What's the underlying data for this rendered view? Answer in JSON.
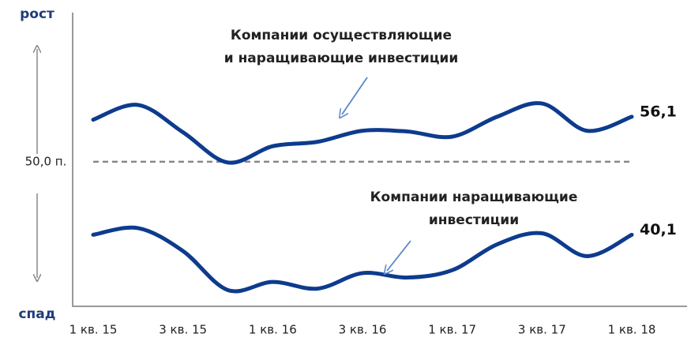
{
  "chart_data": {
    "type": "line",
    "y_top_label": "рост",
    "y_bottom_label": "спад",
    "categories": [
      "1 кв. 15",
      null,
      "3 кв. 15",
      null,
      "1 кв. 16",
      null,
      "3 кв. 16",
      null,
      "1 кв. 17",
      null,
      "3 кв. 17",
      null,
      "1 кв. 18"
    ],
    "ylim": [
      30.4,
      70
    ],
    "reference": {
      "value": 50,
      "label": "50,0 п."
    },
    "series": [
      {
        "name": "Компании осуществляющие и наращивающие инвестиции",
        "annotation": [
          "Компании осуществляющие",
          "и наращивающие инвестиции"
        ],
        "color": "#0d3b8e",
        "values": [
          55.7,
          57.7,
          54.0,
          49.9,
          52.1,
          52.7,
          54.2,
          54.1,
          53.4,
          56.1,
          57.9,
          54.2,
          56.1
        ],
        "value_labels": [
          null,
          null,
          null,
          null,
          null,
          null,
          null,
          null,
          null,
          null,
          null,
          null,
          "56,1"
        ]
      },
      {
        "name": "Компании наращивающие инвестиции",
        "annotation": [
          "Компании наращивающие",
          "инвестиции"
        ],
        "color": "#0d3b8e",
        "values": [
          40.1,
          41.0,
          37.9,
          32.6,
          33.7,
          32.8,
          34.9,
          34.3,
          35.3,
          38.8,
          40.3,
          37.2,
          40.1
        ],
        "value_labels": [
          null,
          null,
          null,
          null,
          null,
          null,
          null,
          null,
          null,
          null,
          null,
          null,
          "40,1"
        ]
      }
    ]
  }
}
